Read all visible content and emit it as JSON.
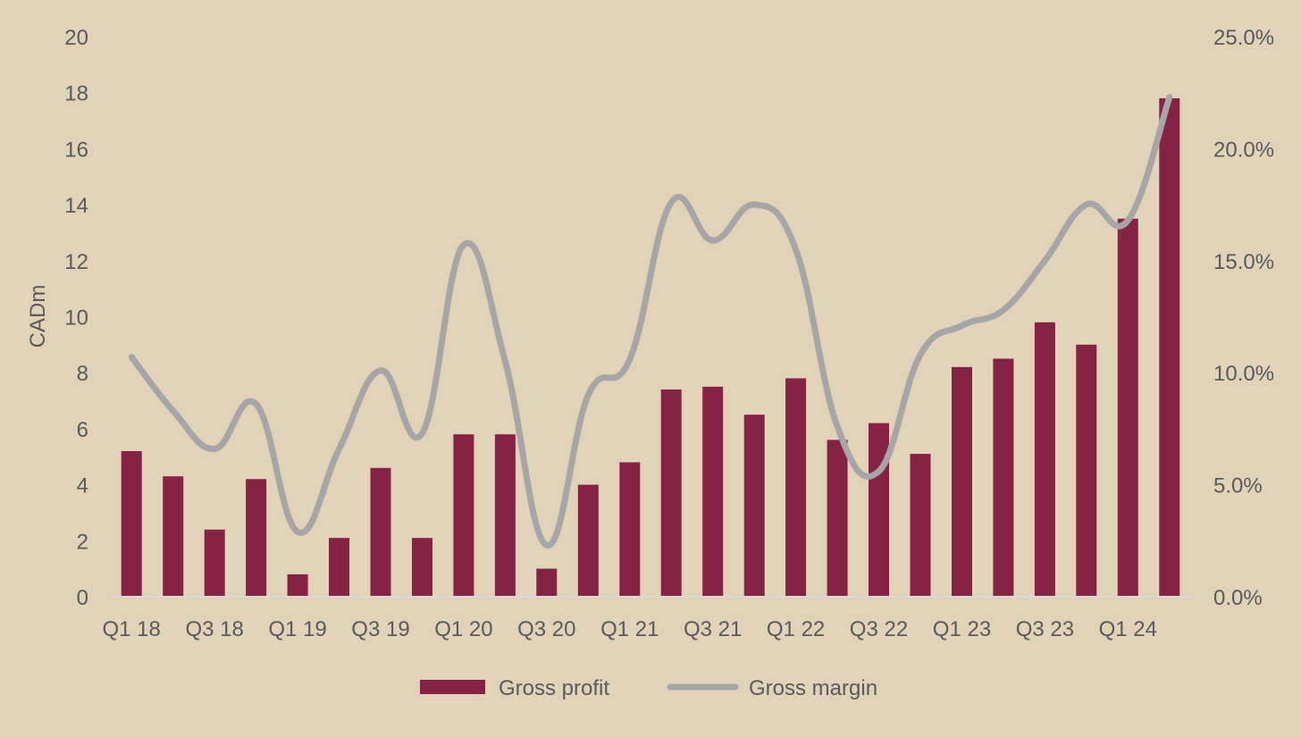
{
  "chart_data": {
    "type": "bar",
    "categories": [
      "Q1 18",
      "Q2 18",
      "Q3 18",
      "Q4 18",
      "Q1 19",
      "Q2 19",
      "Q3 19",
      "Q4 19",
      "Q1 20",
      "Q2 20",
      "Q3 20",
      "Q4 20",
      "Q1 21",
      "Q2 21",
      "Q3 21",
      "Q4 21",
      "Q1 22",
      "Q2 22",
      "Q3 22",
      "Q4 22",
      "Q1 23",
      "Q2 23",
      "Q3 23",
      "Q4 23",
      "Q1 24",
      "Q2 24"
    ],
    "x_tick_labels": [
      "Q1 18",
      "Q3 18",
      "Q1 19",
      "Q3 19",
      "Q1 20",
      "Q3 20",
      "Q1 21",
      "Q3 21",
      "Q1 22",
      "Q3 22",
      "Q1 23",
      "Q3 23",
      "Q1 24"
    ],
    "series": [
      {
        "name": "Gross profit",
        "type": "bar",
        "axis": "left",
        "color": "#862243",
        "values": [
          5.2,
          4.3,
          2.4,
          4.2,
          0.8,
          2.1,
          4.6,
          2.1,
          5.8,
          5.8,
          1.0,
          4.0,
          4.8,
          7.4,
          7.5,
          6.5,
          7.8,
          5.6,
          6.2,
          5.1,
          8.2,
          8.5,
          9.8,
          9.0,
          13.5,
          17.8
        ]
      },
      {
        "name": "Gross margin",
        "type": "line",
        "axis": "right",
        "color": "#A6A6A6",
        "values": [
          10.7,
          8.3,
          6.6,
          8.6,
          2.9,
          6.6,
          10.1,
          7.3,
          15.7,
          10.5,
          2.3,
          9.0,
          10.6,
          17.6,
          15.9,
          17.5,
          15.5,
          7.6,
          5.6,
          10.8,
          12.1,
          12.8,
          15.0,
          17.5,
          16.8,
          22.3
        ]
      }
    ],
    "ylabel": "CADm",
    "ylim": [
      0,
      20
    ],
    "y_ticks": [
      "0",
      "2",
      "4",
      "6",
      "8",
      "10",
      "12",
      "14",
      "16",
      "18",
      "20"
    ],
    "y2lim": [
      0,
      25
    ],
    "y2_ticks": [
      "0.0%",
      "5.0%",
      "10.0%",
      "15.0%",
      "20.0%",
      "25.0%"
    ],
    "grid": false,
    "legend_position": "bottom",
    "legend": [
      "Gross profit",
      "Gross margin"
    ],
    "background": "#E1D3B7"
  }
}
